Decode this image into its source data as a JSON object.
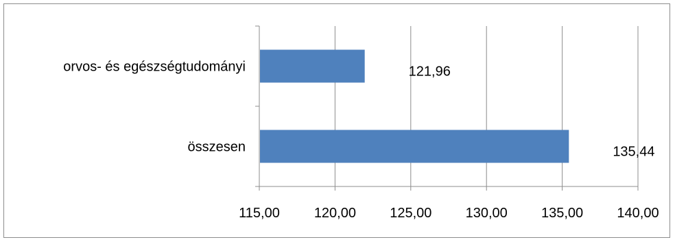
{
  "chart_data": {
    "type": "bar",
    "orientation": "horizontal",
    "categories": [
      "orvos- és egészségtudományi",
      "összesen"
    ],
    "values": [
      121.96,
      135.44
    ],
    "value_labels": [
      "121,96",
      "135,44"
    ],
    "xlim": [
      115,
      140
    ],
    "xticks": [
      115,
      120,
      125,
      130,
      135,
      140
    ],
    "xtick_labels": [
      "115,00",
      "120,00",
      "125,00",
      "130,00",
      "135,00",
      "140,00"
    ],
    "title": "",
    "xlabel": "",
    "ylabel": "",
    "grid": "vertical",
    "legend": "none",
    "bar_color": "#4f81bd"
  }
}
